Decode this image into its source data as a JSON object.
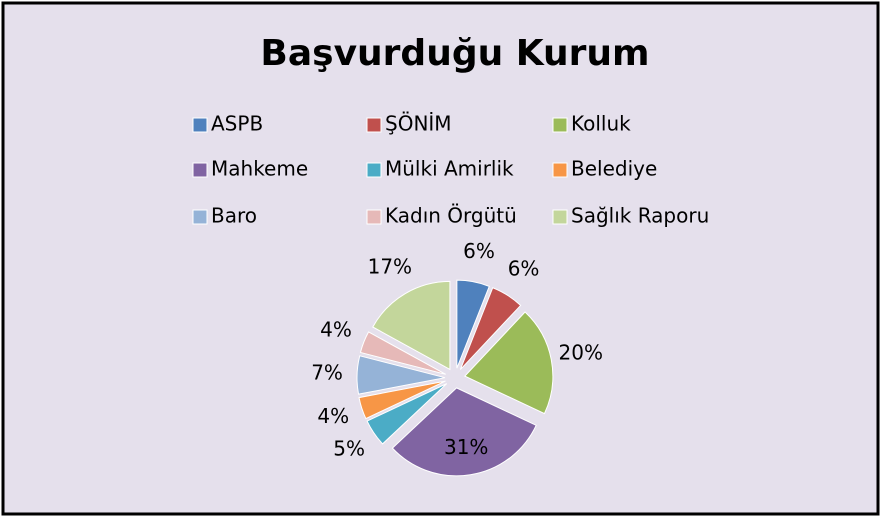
{
  "chart_data": {
    "type": "pie",
    "title": "Başvurduğu Kurum",
    "categories": [
      "ASPB",
      "ŞÖNİM",
      "Kolluk",
      "Mahkeme",
      "Mülki Amirlik",
      "Belediye",
      "Baro",
      "Kadın Örgütü",
      "Sağlık Raporu"
    ],
    "values": [
      6,
      6,
      20,
      31,
      5,
      4,
      7,
      4,
      17
    ],
    "value_labels": [
      "6%",
      "6%",
      "20%",
      "31%",
      "5%",
      "4%",
      "7%",
      "4%",
      "17%"
    ],
    "colors": [
      "#4f81bd",
      "#c0504d",
      "#9bbb59",
      "#8064a2",
      "#4bacc6",
      "#f79646",
      "#95b3d7",
      "#e6b9b8",
      "#c3d69b"
    ],
    "legend": "top"
  }
}
